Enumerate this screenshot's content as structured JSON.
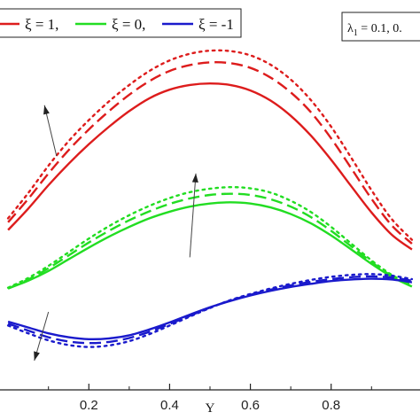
{
  "chart_data": {
    "type": "line",
    "xlabel": "Y",
    "ylabel": "",
    "xlim": [
      -0.02,
      1.02
    ],
    "ylim": [
      0,
      1
    ],
    "grid": false,
    "legend": {
      "placement": "top-left",
      "entries": [
        {
          "label": "ξ = 1,",
          "color": "#dd1c1c"
        },
        {
          "label": "ξ = 0,",
          "color": "#22dd22"
        },
        {
          "label": "ξ = -1",
          "color": "#1a1acc"
        }
      ]
    },
    "parameter_box": {
      "text": "λ",
      "subscript": "1",
      "value_text": " = 0.1, 0.",
      "placement": "top-right"
    },
    "x_ticks": [
      {
        "value": 0.2,
        "label": "0.2"
      },
      {
        "value": 0.4,
        "label": "0.4"
      },
      {
        "value": 0.6,
        "label": "0.6"
      },
      {
        "value": 0.8,
        "label": "0.8"
      }
    ],
    "series": [
      {
        "color": "#dd1c1c",
        "style": "solid",
        "x": [
          0.0,
          0.05,
          0.1,
          0.15,
          0.2,
          0.25,
          0.3,
          0.35,
          0.4,
          0.45,
          0.5,
          0.55,
          0.6,
          0.65,
          0.7,
          0.75,
          0.8,
          0.85,
          0.9,
          0.95,
          1.0
        ],
        "values": [
          0.41,
          0.465,
          0.525,
          0.58,
          0.63,
          0.675,
          0.715,
          0.748,
          0.77,
          0.782,
          0.786,
          0.782,
          0.768,
          0.742,
          0.703,
          0.652,
          0.59,
          0.522,
          0.455,
          0.398,
          0.36
        ]
      },
      {
        "color": "#dd1c1c",
        "style": "dashed",
        "x": [
          0.0,
          0.05,
          0.1,
          0.15,
          0.2,
          0.25,
          0.3,
          0.35,
          0.4,
          0.45,
          0.5,
          0.55,
          0.6,
          0.65,
          0.7,
          0.75,
          0.8,
          0.85,
          0.9,
          0.95,
          1.0
        ],
        "values": [
          0.43,
          0.49,
          0.555,
          0.615,
          0.668,
          0.715,
          0.757,
          0.792,
          0.818,
          0.833,
          0.84,
          0.838,
          0.826,
          0.801,
          0.763,
          0.712,
          0.645,
          0.568,
          0.49,
          0.422,
          0.375
        ]
      },
      {
        "color": "#dd1c1c",
        "style": "dotted",
        "x": [
          0.0,
          0.05,
          0.1,
          0.15,
          0.2,
          0.25,
          0.3,
          0.35,
          0.4,
          0.45,
          0.5,
          0.55,
          0.6,
          0.65,
          0.7,
          0.75,
          0.8,
          0.85,
          0.9,
          0.95,
          1.0
        ],
        "values": [
          0.44,
          0.505,
          0.575,
          0.638,
          0.692,
          0.74,
          0.782,
          0.818,
          0.845,
          0.862,
          0.87,
          0.869,
          0.858,
          0.834,
          0.796,
          0.743,
          0.675,
          0.595,
          0.512,
          0.438,
          0.385
        ]
      },
      {
        "color": "#22dd22",
        "style": "solid",
        "x": [
          0.0,
          0.05,
          0.1,
          0.15,
          0.2,
          0.25,
          0.3,
          0.35,
          0.4,
          0.45,
          0.5,
          0.55,
          0.6,
          0.65,
          0.7,
          0.75,
          0.8,
          0.85,
          0.9,
          0.95,
          1.0
        ],
        "values": [
          0.26,
          0.28,
          0.305,
          0.335,
          0.365,
          0.393,
          0.418,
          0.44,
          0.457,
          0.47,
          0.478,
          0.481,
          0.478,
          0.468,
          0.451,
          0.427,
          0.396,
          0.36,
          0.323,
          0.29,
          0.265
        ]
      },
      {
        "color": "#22dd22",
        "style": "dashed",
        "x": [
          0.0,
          0.05,
          0.1,
          0.15,
          0.2,
          0.25,
          0.3,
          0.35,
          0.4,
          0.45,
          0.5,
          0.55,
          0.6,
          0.65,
          0.7,
          0.75,
          0.8,
          0.85,
          0.9,
          0.95,
          1.0
        ],
        "values": [
          0.26,
          0.283,
          0.312,
          0.345,
          0.378,
          0.408,
          0.435,
          0.458,
          0.477,
          0.491,
          0.5,
          0.503,
          0.5,
          0.489,
          0.47,
          0.443,
          0.408,
          0.368,
          0.328,
          0.292,
          0.265
        ]
      },
      {
        "color": "#22dd22",
        "style": "dotted",
        "x": [
          0.0,
          0.05,
          0.1,
          0.15,
          0.2,
          0.25,
          0.3,
          0.35,
          0.4,
          0.45,
          0.5,
          0.55,
          0.6,
          0.65,
          0.7,
          0.75,
          0.8,
          0.85,
          0.9,
          0.95,
          1.0
        ],
        "values": [
          0.262,
          0.287,
          0.318,
          0.353,
          0.388,
          0.42,
          0.448,
          0.472,
          0.492,
          0.507,
          0.516,
          0.52,
          0.517,
          0.506,
          0.485,
          0.456,
          0.418,
          0.375,
          0.332,
          0.295,
          0.268
        ]
      },
      {
        "color": "#1a1acc",
        "style": "solid",
        "x": [
          0.0,
          0.05,
          0.1,
          0.15,
          0.2,
          0.25,
          0.3,
          0.35,
          0.4,
          0.45,
          0.5,
          0.55,
          0.6,
          0.65,
          0.7,
          0.75,
          0.8,
          0.85,
          0.9,
          0.95,
          1.0
        ],
        "values": [
          0.175,
          0.16,
          0.145,
          0.135,
          0.13,
          0.132,
          0.14,
          0.155,
          0.173,
          0.193,
          0.212,
          0.228,
          0.242,
          0.254,
          0.264,
          0.272,
          0.279,
          0.283,
          0.285,
          0.283,
          0.276
        ]
      },
      {
        "color": "#1a1acc",
        "style": "dashed",
        "x": [
          0.0,
          0.05,
          0.1,
          0.15,
          0.2,
          0.25,
          0.3,
          0.35,
          0.4,
          0.45,
          0.5,
          0.55,
          0.6,
          0.65,
          0.7,
          0.75,
          0.8,
          0.85,
          0.9,
          0.95,
          1.0
        ],
        "values": [
          0.17,
          0.152,
          0.135,
          0.124,
          0.12,
          0.123,
          0.133,
          0.149,
          0.169,
          0.19,
          0.211,
          0.229,
          0.244,
          0.257,
          0.268,
          0.277,
          0.284,
          0.289,
          0.291,
          0.288,
          0.28
        ]
      },
      {
        "color": "#1a1acc",
        "style": "dotted",
        "x": [
          0.0,
          0.05,
          0.1,
          0.15,
          0.2,
          0.25,
          0.3,
          0.35,
          0.4,
          0.45,
          0.5,
          0.55,
          0.6,
          0.65,
          0.7,
          0.75,
          0.8,
          0.85,
          0.9,
          0.95,
          1.0
        ],
        "values": [
          0.165,
          0.145,
          0.127,
          0.115,
          0.11,
          0.114,
          0.125,
          0.143,
          0.165,
          0.188,
          0.21,
          0.23,
          0.246,
          0.26,
          0.272,
          0.282,
          0.29,
          0.295,
          0.297,
          0.293,
          0.284
        ]
      }
    ],
    "annotations": [
      {
        "type": "arrow",
        "from": [
          0.12,
          0.6
        ],
        "to": [
          0.09,
          0.73
        ]
      },
      {
        "type": "arrow",
        "from": [
          0.45,
          0.34
        ],
        "to": [
          0.465,
          0.555
        ]
      },
      {
        "type": "arrow",
        "from": [
          0.1,
          0.2
        ],
        "to": [
          0.065,
          0.075
        ]
      }
    ]
  }
}
